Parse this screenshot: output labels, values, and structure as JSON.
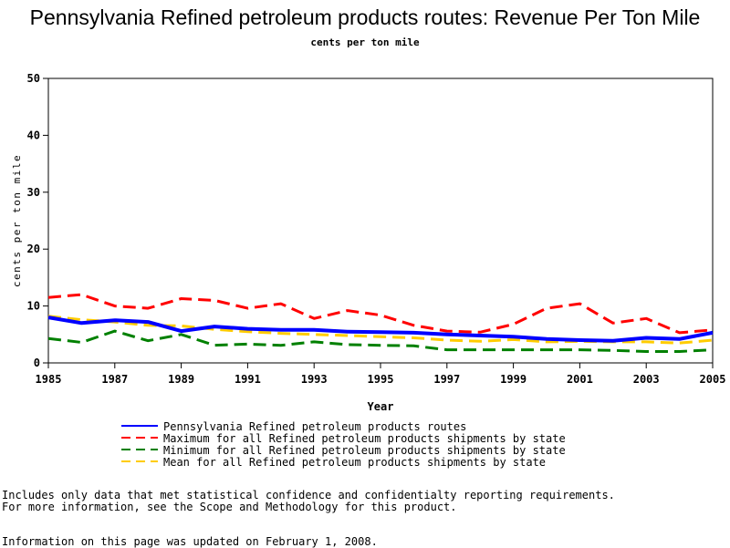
{
  "title": "Pennsylvania Refined petroleum products routes: Revenue Per Ton Mile",
  "subtitle": "cents per ton mile",
  "notes": {
    "line1": "Includes only data that met statistical confidence and confidentialty reporting requirements.",
    "line2": "For more information, see the Scope and Methodology for this product.",
    "line3": "Information on this page was updated on February 1, 2008."
  },
  "chart_data": {
    "type": "line",
    "title": "Pennsylvania Refined petroleum products routes: Revenue Per Ton Mile",
    "subtitle": "cents per ton mile",
    "xlabel": "Year",
    "ylabel": "cents per ton mile",
    "xlim": [
      1985,
      2005
    ],
    "ylim": [
      0,
      50
    ],
    "xticks": [
      1985,
      1987,
      1989,
      1991,
      1993,
      1995,
      1997,
      1999,
      2001,
      2003,
      2005
    ],
    "yticks": [
      0,
      10,
      20,
      30,
      40,
      50
    ],
    "grid": false,
    "legend_position": "bottom",
    "x": [
      1985,
      1986,
      1987,
      1988,
      1989,
      1990,
      1991,
      1992,
      1993,
      1994,
      1995,
      1996,
      1997,
      1998,
      1999,
      2000,
      2001,
      2002,
      2003,
      2004,
      2005
    ],
    "series": [
      {
        "name": "Pennsylvania Refined petroleum products routes",
        "color": "#0000ff",
        "dash": "solid",
        "values": [
          8.0,
          7.0,
          7.5,
          7.2,
          5.6,
          6.4,
          6.0,
          5.8,
          5.8,
          5.5,
          5.4,
          5.3,
          5.0,
          4.8,
          4.6,
          4.2,
          4.0,
          3.9,
          4.4,
          4.2,
          5.3
        ]
      },
      {
        "name": "Maximum for all Refined petroleum products shipments by state",
        "color": "#ff0000",
        "dash": "dashed",
        "values": [
          11.5,
          12.0,
          10.0,
          9.6,
          11.3,
          11.0,
          9.6,
          10.4,
          7.8,
          9.2,
          8.4,
          6.6,
          5.6,
          5.4,
          6.8,
          9.6,
          10.4,
          7.0,
          7.8,
          5.3,
          5.8
        ]
      },
      {
        "name": "Minimum for all Refined petroleum products shipments by state",
        "color": "#008000",
        "dash": "dashed",
        "values": [
          4.3,
          3.6,
          5.6,
          3.9,
          5.0,
          3.1,
          3.3,
          3.1,
          3.7,
          3.2,
          3.1,
          3.0,
          2.3,
          2.3,
          2.3,
          2.3,
          2.3,
          2.2,
          2.0,
          2.0,
          2.3
        ]
      },
      {
        "name": "Mean for all Refined petroleum products shipments by state",
        "color": "#ffcc00",
        "dash": "dashed",
        "values": [
          8.2,
          7.6,
          7.2,
          6.6,
          6.5,
          5.9,
          5.5,
          5.2,
          5.0,
          4.8,
          4.6,
          4.4,
          4.0,
          3.8,
          4.1,
          3.7,
          3.8,
          3.7,
          3.7,
          3.5,
          4.0
        ]
      }
    ]
  }
}
